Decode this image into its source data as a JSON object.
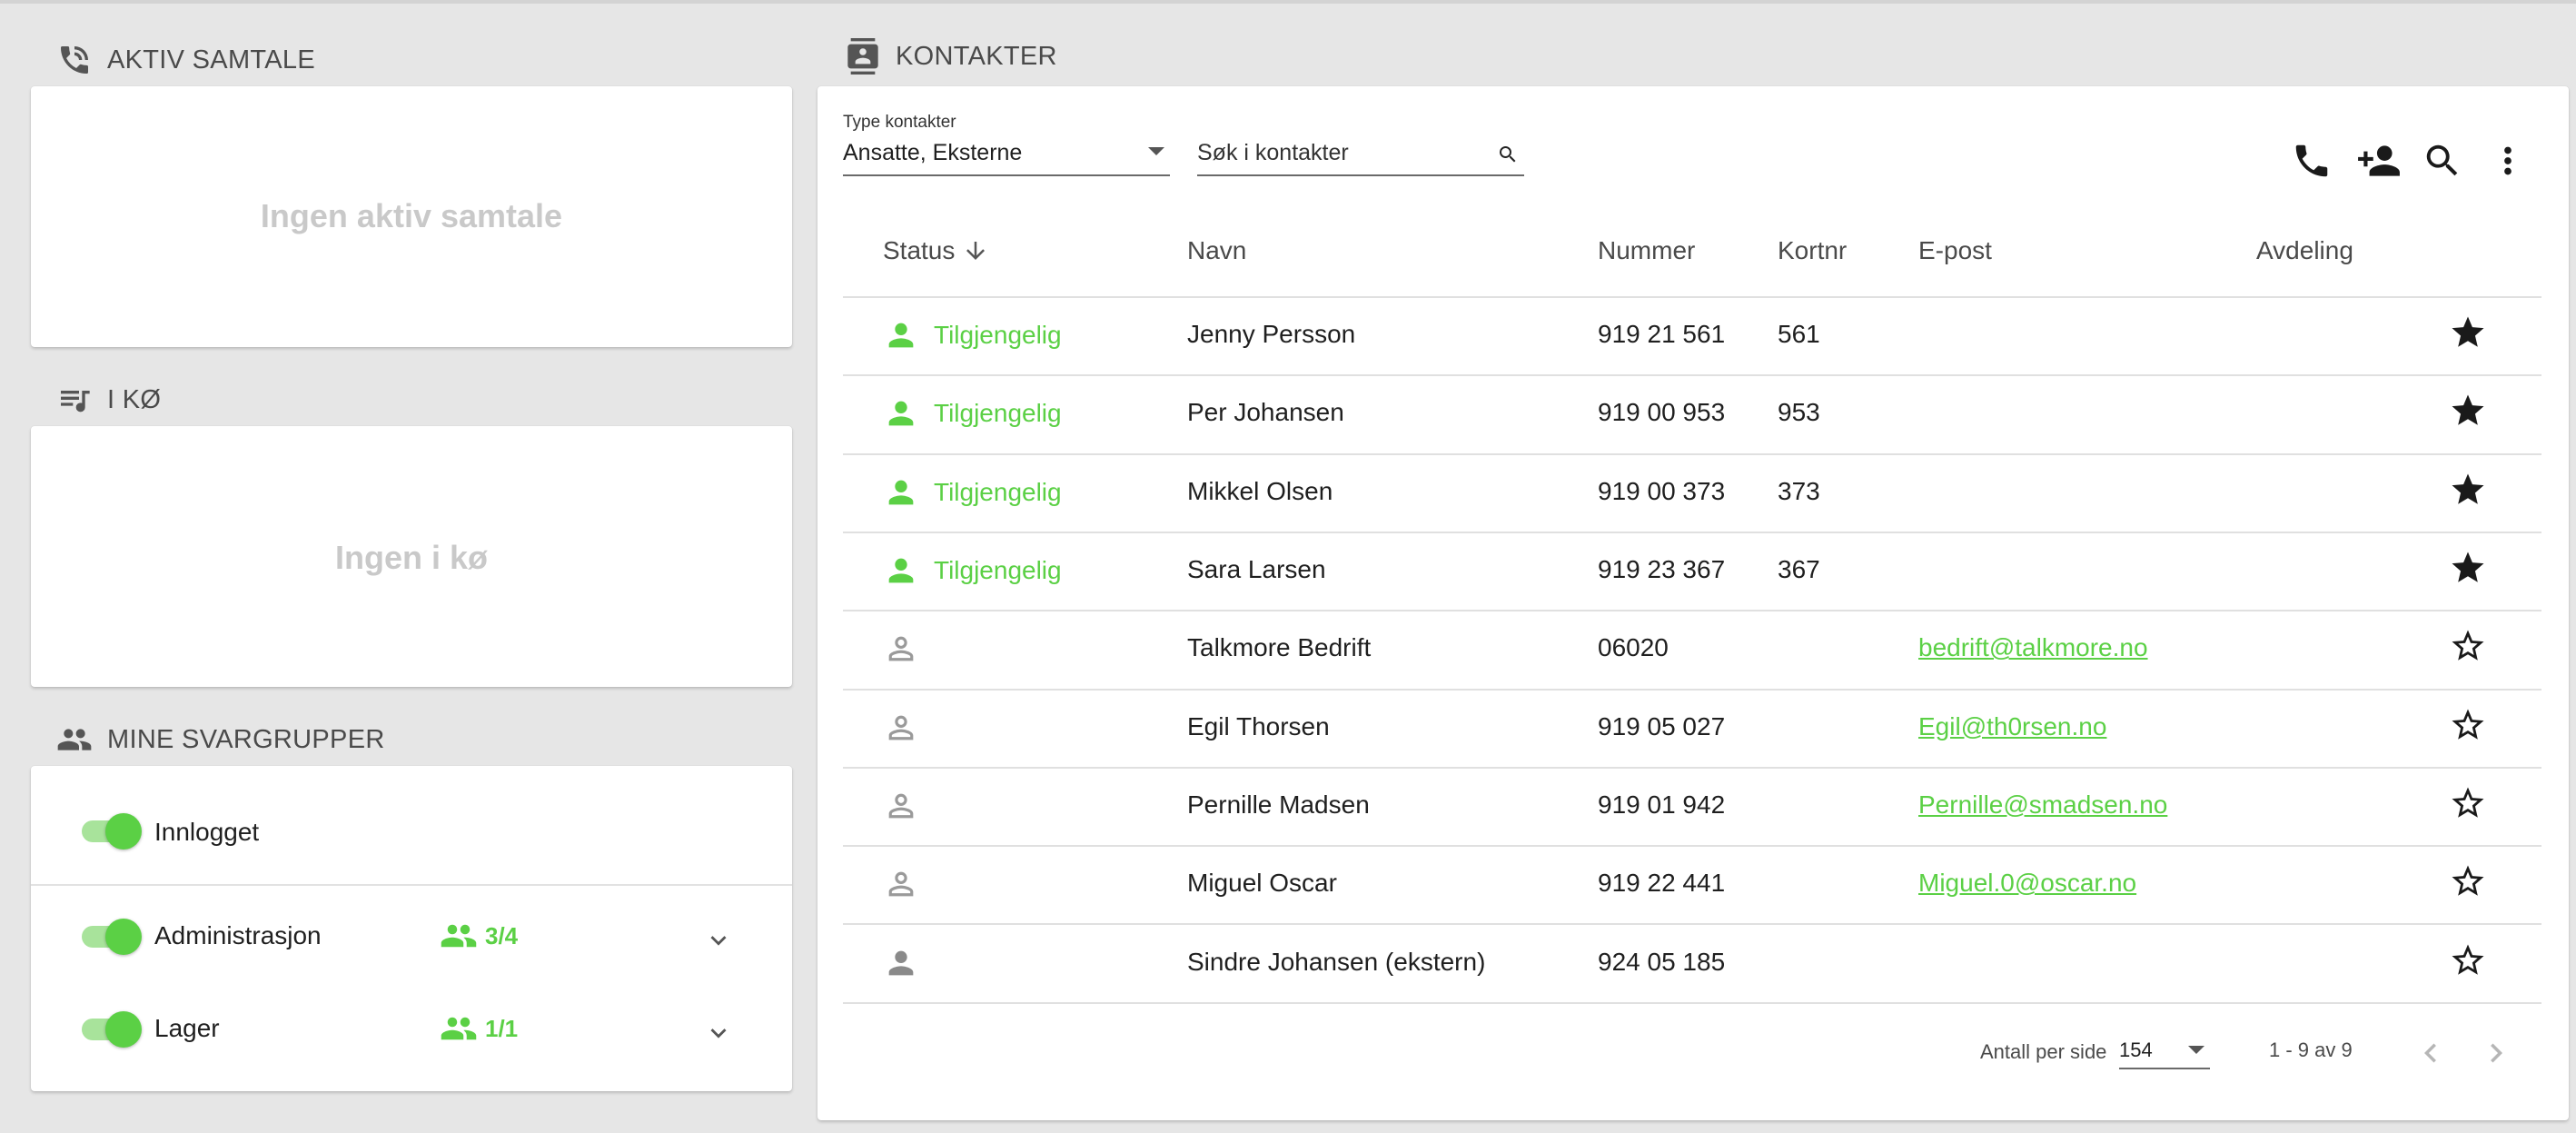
{
  "active_call": {
    "title": "AKTIV SAMTALE",
    "empty": "Ingen aktiv samtale"
  },
  "queue": {
    "title": "I KØ",
    "empty": "Ingen i kø"
  },
  "groups": {
    "title": "MINE SVARGRUPPER",
    "logged_in": "Innlogget",
    "items": [
      {
        "name": "Administrasjon",
        "count": "3/4"
      },
      {
        "name": "Lager",
        "count": "1/1"
      }
    ]
  },
  "contacts": {
    "title": "KONTAKTER",
    "type_label": "Type kontakter",
    "type_value": "Ansatte, Eksterne",
    "search_placeholder": "Søk i kontakter",
    "columns": {
      "status": "Status",
      "name": "Navn",
      "number": "Nummer",
      "short": "Kortnr",
      "email": "E-post",
      "dept": "Avdeling"
    },
    "rows": [
      {
        "status": "Tilgjengelig",
        "name": "Jenny Persson",
        "number": "919 21 561",
        "short": "561",
        "email": ""
      },
      {
        "status": "Tilgjengelig",
        "name": "Per Johansen",
        "number": "919 00 953",
        "short": "953",
        "email": ""
      },
      {
        "status": "Tilgjengelig",
        "name": "Mikkel Olsen",
        "number": "919 00 373",
        "short": "373",
        "email": ""
      },
      {
        "status": "Tilgjengelig",
        "name": "Sara Larsen",
        "number": "919 23 367",
        "short": "367",
        "email": ""
      },
      {
        "status": "",
        "name": "Talkmore Bedrift",
        "number": "06020",
        "short": "",
        "email": "bedrift@talkmore.no"
      },
      {
        "status": "",
        "name": "Egil Thorsen",
        "number": "919 05 027",
        "short": "",
        "email": "Egil@th0rsen.no"
      },
      {
        "status": "",
        "name": "Pernille Madsen",
        "number": "919 01 942",
        "short": "",
        "email": "Pernille@smadsen.no"
      },
      {
        "status": "",
        "name": "Miguel Oscar",
        "number": "919 22 441",
        "short": "",
        "email": "Miguel.0@oscar.no"
      },
      {
        "status": "",
        "name": "Sindre Johansen (ekstern)",
        "number": "924 05 185",
        "short": "",
        "email": ""
      }
    ],
    "pager": {
      "per_page_label": "Antall per side",
      "per_page": "154",
      "range": "1 - 9 av 9"
    }
  }
}
